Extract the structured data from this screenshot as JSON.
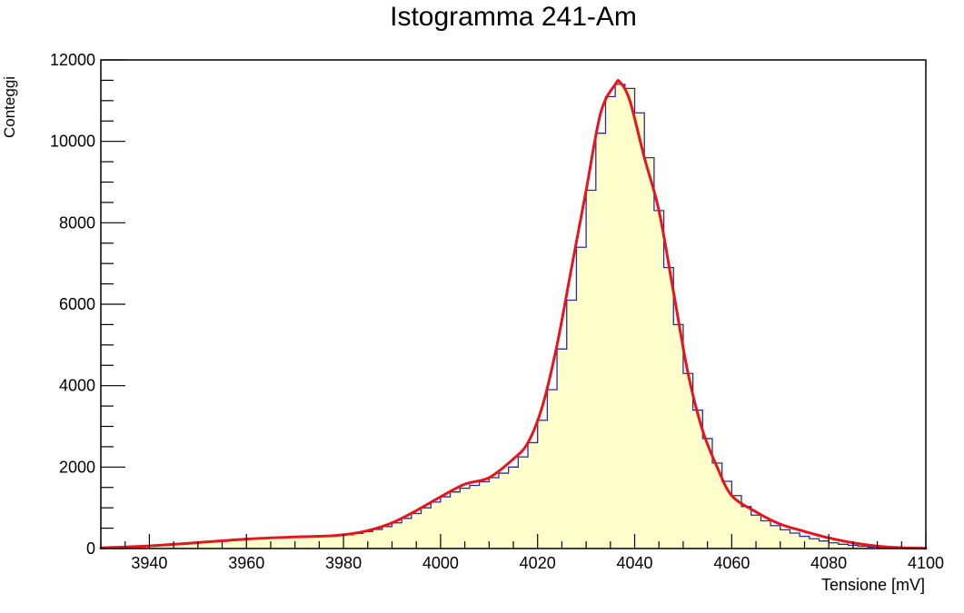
{
  "chart_data": {
    "type": "bar",
    "title": "Istogramma 241-Am",
    "xlabel": "Tensione [mV]",
    "ylabel": "Conteggi",
    "xlim": [
      3930,
      4100
    ],
    "ylim": [
      0,
      12000
    ],
    "x_ticks": [
      3940,
      3960,
      3980,
      4000,
      4020,
      4040,
      4060,
      4080,
      4100
    ],
    "y_ticks": [
      0,
      2000,
      4000,
      6000,
      8000,
      10000,
      12000
    ],
    "grid": false,
    "bin_width": 2,
    "bins": {
      "x": [
        3930,
        3932,
        3934,
        3936,
        3938,
        3940,
        3942,
        3944,
        3946,
        3948,
        3950,
        3952,
        3954,
        3956,
        3958,
        3960,
        3962,
        3964,
        3966,
        3968,
        3970,
        3972,
        3974,
        3976,
        3978,
        3980,
        3982,
        3984,
        3986,
        3988,
        3990,
        3992,
        3994,
        3996,
        3998,
        4000,
        4002,
        4004,
        4006,
        4008,
        4010,
        4012,
        4014,
        4016,
        4018,
        4020,
        4022,
        4024,
        4026,
        4028,
        4030,
        4032,
        4034,
        4036,
        4038,
        4040,
        4042,
        4044,
        4046,
        4048,
        4050,
        4052,
        4054,
        4056,
        4058,
        4060,
        4062,
        4064,
        4066,
        4068,
        4070,
        4072,
        4074,
        4076,
        4078,
        4080,
        4082,
        4084,
        4086,
        4088,
        4090,
        4092,
        4094,
        4096,
        4098
      ],
      "counts": [
        15,
        22,
        30,
        40,
        52,
        65,
        80,
        95,
        110,
        128,
        145,
        162,
        180,
        198,
        215,
        232,
        248,
        262,
        272,
        280,
        285,
        290,
        295,
        302,
        315,
        338,
        370,
        415,
        470,
        540,
        630,
        740,
        860,
        1000,
        1140,
        1270,
        1390,
        1480,
        1550,
        1640,
        1740,
        1850,
        2000,
        2250,
        2600,
        3150,
        3900,
        4900,
        6100,
        7400,
        8800,
        10200,
        11100,
        11400,
        11300,
        10700,
        9600,
        8300,
        6900,
        5500,
        4300,
        3400,
        2700,
        2100,
        1650,
        1300,
        1030,
        820,
        680,
        560,
        460,
        380,
        300,
        240,
        185,
        140,
        105,
        78,
        55,
        38,
        24,
        15,
        9,
        6,
        4
      ]
    },
    "fit_curve": {
      "x": [
        3930,
        3940,
        3950,
        3960,
        3970,
        3975,
        3980,
        3985,
        3990,
        3995,
        4000,
        4005,
        4010,
        4015,
        4018,
        4021,
        4024,
        4027,
        4030,
        4033,
        4036,
        4037,
        4039,
        4042,
        4045,
        4048,
        4051,
        4054,
        4057,
        4060,
        4065,
        4070,
        4075,
        4080,
        4085,
        4090,
        4095,
        4100
      ],
      "y": [
        15,
        65,
        145,
        232,
        285,
        300,
        338,
        440,
        630,
        930,
        1270,
        1580,
        1740,
        2200,
        2600,
        3500,
        5000,
        6900,
        8800,
        10700,
        11400,
        11450,
        11000,
        9600,
        8300,
        6300,
        4300,
        2900,
        2000,
        1300,
        900,
        600,
        420,
        260,
        140,
        60,
        20,
        5
      ],
      "color": "#e8141c"
    },
    "fill_color": "#ffffcc",
    "line_color": "#2a2a9c"
  }
}
